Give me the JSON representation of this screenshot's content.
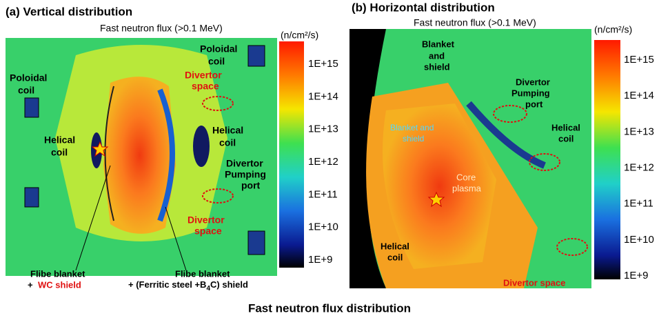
{
  "title": "Fast neutron flux distribution",
  "panels": [
    {
      "title": "(a) Vertical distribution",
      "flux_label": "Fast neutron flux (>0.1 MeV)",
      "unit": "(n/cm²/s)",
      "colorbar_labels": [
        "1E+15",
        "1E+14",
        "1E+13",
        "1E+12",
        "1E+11",
        "1E+10",
        "1E+9"
      ],
      "annotations": [
        "Poloidal",
        "coil",
        "Divertor",
        "space",
        "Poloidal",
        "coil",
        "Helical",
        "coil",
        "Helical",
        "coil",
        "Divertor",
        "Pumping",
        "port",
        "Divertor",
        "space",
        "Flibe blanket",
        "+",
        "WC shield",
        "Flibe blanket",
        "+ (Ferritic steel +B",
        "4",
        "C) shield"
      ]
    },
    {
      "title": "(b) Horizontal distribution",
      "flux_label": "Fast neutron flux (>0.1 MeV)",
      "unit": "(n/cm²/s)",
      "colorbar_labels": [
        "1E+15",
        "1E+14",
        "1E+13",
        "1E+12",
        "1E+11",
        "1E+10",
        "1E+9"
      ],
      "annotations": [
        "Blanket",
        "and",
        "shield",
        "Divertor",
        "Pumping",
        "port",
        "Blanket and",
        "shield",
        "Helical",
        "coil",
        "Core",
        "plasma",
        "Helical",
        "coil",
        "Divertor space"
      ]
    }
  ]
}
